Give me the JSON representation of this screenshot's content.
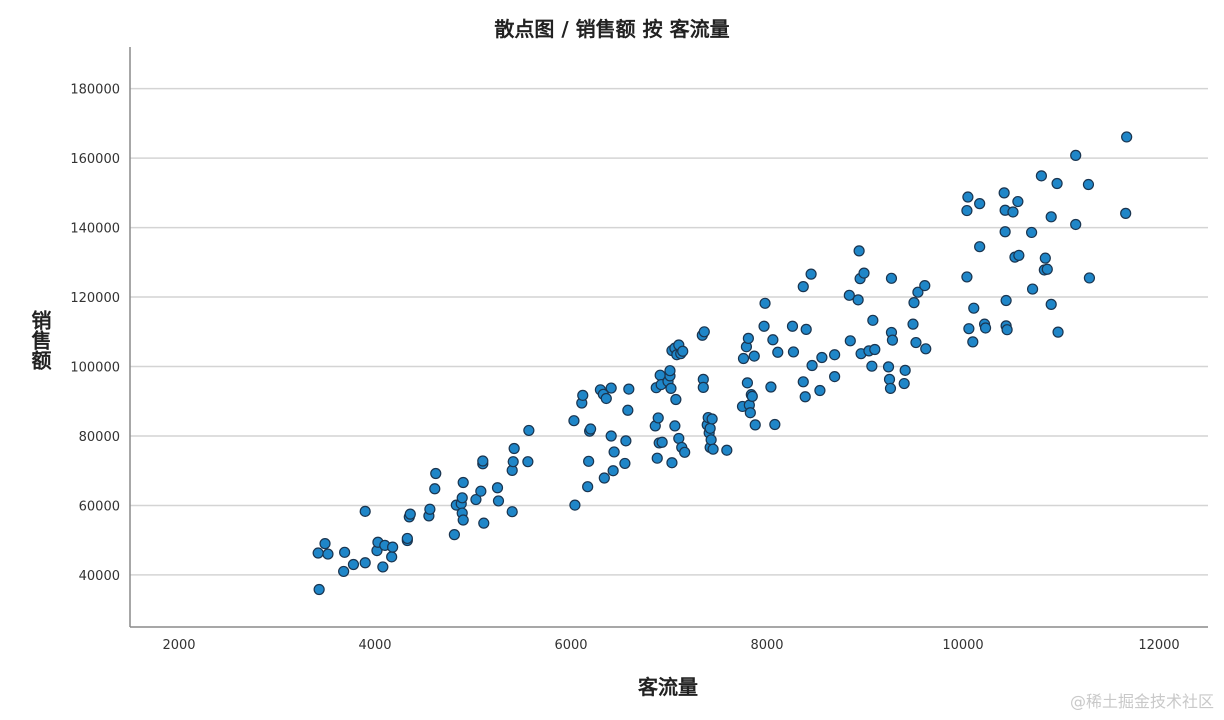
{
  "watermark": "@稀土掘金技术社区",
  "chart_data": {
    "type": "scatter",
    "title": "散点图 / 销售额 按 客流量",
    "xlabel": "客流量",
    "ylabel": "销售额",
    "xlim": [
      1500,
      12500
    ],
    "ylim": [
      25000,
      192000
    ],
    "xticks": [
      2000,
      4000,
      6000,
      8000,
      10000,
      12000
    ],
    "yticks": [
      40000,
      60000,
      80000,
      100000,
      120000,
      140000,
      160000,
      180000
    ],
    "grid": "horizontal",
    "marker_color": "#1f86c8",
    "marker_edge": "#1a3550",
    "points": [
      [
        3430,
        35800
      ],
      [
        3420,
        46300
      ],
      [
        3490,
        49000
      ],
      [
        3520,
        46000
      ],
      [
        3680,
        41000
      ],
      [
        3690,
        46500
      ],
      [
        3780,
        43000
      ],
      [
        3900,
        43500
      ],
      [
        3900,
        58300
      ],
      [
        4020,
        47000
      ],
      [
        4030,
        49400
      ],
      [
        4080,
        42300
      ],
      [
        4100,
        48500
      ],
      [
        4170,
        45200
      ],
      [
        4180,
        48000
      ],
      [
        4330,
        49900
      ],
      [
        4330,
        50500
      ],
      [
        4350,
        56700
      ],
      [
        4360,
        57500
      ],
      [
        4550,
        57000
      ],
      [
        4560,
        58900
      ],
      [
        4610,
        64800
      ],
      [
        4620,
        69200
      ],
      [
        4810,
        51600
      ],
      [
        4830,
        60100
      ],
      [
        4880,
        60500
      ],
      [
        4890,
        62200
      ],
      [
        4890,
        57800
      ],
      [
        4900,
        66600
      ],
      [
        4900,
        55800
      ],
      [
        5030,
        61700
      ],
      [
        5080,
        64100
      ],
      [
        5100,
        72000
      ],
      [
        5100,
        72800
      ],
      [
        5110,
        54900
      ],
      [
        5250,
        65100
      ],
      [
        5260,
        61300
      ],
      [
        5400,
        58200
      ],
      [
        5400,
        70100
      ],
      [
        5410,
        72600
      ],
      [
        5420,
        76400
      ],
      [
        5560,
        72600
      ],
      [
        5570,
        81600
      ],
      [
        6030,
        84400
      ],
      [
        6040,
        60100
      ],
      [
        6110,
        89500
      ],
      [
        6120,
        91700
      ],
      [
        6170,
        65400
      ],
      [
        6180,
        72700
      ],
      [
        6190,
        81400
      ],
      [
        6200,
        82000
      ],
      [
        6300,
        93300
      ],
      [
        6330,
        92000
      ],
      [
        6340,
        67900
      ],
      [
        6360,
        90800
      ],
      [
        6410,
        80000
      ],
      [
        6410,
        93800
      ],
      [
        6430,
        70000
      ],
      [
        6440,
        75400
      ],
      [
        6550,
        72100
      ],
      [
        6560,
        78600
      ],
      [
        6580,
        87400
      ],
      [
        6590,
        93500
      ],
      [
        6860,
        82900
      ],
      [
        6870,
        93900
      ],
      [
        6880,
        73600
      ],
      [
        6890,
        85200
      ],
      [
        6900,
        78000
      ],
      [
        6910,
        97500
      ],
      [
        6920,
        94800
      ],
      [
        6930,
        78200
      ],
      [
        6990,
        95700
      ],
      [
        7010,
        97300
      ],
      [
        7010,
        98800
      ],
      [
        7020,
        93700
      ],
      [
        7030,
        104600
      ],
      [
        7030,
        72300
      ],
      [
        7060,
        82900
      ],
      [
        7060,
        105300
      ],
      [
        7070,
        90500
      ],
      [
        7080,
        103400
      ],
      [
        7100,
        79300
      ],
      [
        7100,
        106200
      ],
      [
        7120,
        103700
      ],
      [
        7130,
        76700
      ],
      [
        7140,
        104400
      ],
      [
        7160,
        75300
      ],
      [
        7340,
        109000
      ],
      [
        7350,
        96300
      ],
      [
        7350,
        94000
      ],
      [
        7360,
        110000
      ],
      [
        7390,
        83200
      ],
      [
        7400,
        85300
      ],
      [
        7410,
        80900
      ],
      [
        7420,
        82200
      ],
      [
        7420,
        76700
      ],
      [
        7430,
        78900
      ],
      [
        7440,
        84900
      ],
      [
        7450,
        76200
      ],
      [
        7590,
        75900
      ],
      [
        7750,
        88500
      ],
      [
        7760,
        102300
      ],
      [
        7790,
        105700
      ],
      [
        7800,
        95300
      ],
      [
        7810,
        108100
      ],
      [
        7820,
        88900
      ],
      [
        7830,
        86700
      ],
      [
        7840,
        91900
      ],
      [
        7850,
        91400
      ],
      [
        7870,
        103000
      ],
      [
        7880,
        83200
      ],
      [
        7970,
        111600
      ],
      [
        7980,
        118200
      ],
      [
        8040,
        94100
      ],
      [
        8060,
        107700
      ],
      [
        8080,
        83300
      ],
      [
        8110,
        104100
      ],
      [
        8260,
        111600
      ],
      [
        8270,
        104200
      ],
      [
        8370,
        95600
      ],
      [
        8370,
        123000
      ],
      [
        8390,
        91300
      ],
      [
        8400,
        110700
      ],
      [
        8450,
        126600
      ],
      [
        8460,
        100300
      ],
      [
        8540,
        93100
      ],
      [
        8560,
        102600
      ],
      [
        8690,
        97100
      ],
      [
        8690,
        103400
      ],
      [
        8840,
        120500
      ],
      [
        8850,
        107400
      ],
      [
        8930,
        119200
      ],
      [
        8940,
        133300
      ],
      [
        8950,
        125300
      ],
      [
        8960,
        103700
      ],
      [
        8990,
        126900
      ],
      [
        9040,
        104500
      ],
      [
        9070,
        100100
      ],
      [
        9080,
        113300
      ],
      [
        9100,
        104900
      ],
      [
        9240,
        99900
      ],
      [
        9250,
        96300
      ],
      [
        9260,
        93700
      ],
      [
        9270,
        125400
      ],
      [
        9270,
        109800
      ],
      [
        9280,
        107600
      ],
      [
        9400,
        95100
      ],
      [
        9410,
        98900
      ],
      [
        9490,
        112200
      ],
      [
        9500,
        118400
      ],
      [
        9520,
        106900
      ],
      [
        9540,
        121400
      ],
      [
        9610,
        123300
      ],
      [
        9620,
        105100
      ],
      [
        10040,
        125800
      ],
      [
        10040,
        144900
      ],
      [
        10050,
        148800
      ],
      [
        10060,
        110900
      ],
      [
        10100,
        107100
      ],
      [
        10110,
        116800
      ],
      [
        10170,
        134500
      ],
      [
        10170,
        146900
      ],
      [
        10220,
        112200
      ],
      [
        10230,
        111100
      ],
      [
        10420,
        150000
      ],
      [
        10430,
        145000
      ],
      [
        10430,
        138800
      ],
      [
        10440,
        119000
      ],
      [
        10440,
        111700
      ],
      [
        10450,
        110600
      ],
      [
        10510,
        144500
      ],
      [
        10530,
        131500
      ],
      [
        10560,
        147500
      ],
      [
        10570,
        132000
      ],
      [
        10700,
        138600
      ],
      [
        10710,
        122300
      ],
      [
        10800,
        154900
      ],
      [
        10830,
        127800
      ],
      [
        10840,
        131200
      ],
      [
        10860,
        128000
      ],
      [
        10900,
        117900
      ],
      [
        10900,
        143100
      ],
      [
        10960,
        152700
      ],
      [
        10970,
        109900
      ],
      [
        11150,
        160800
      ],
      [
        11150,
        140900
      ],
      [
        11280,
        152400
      ],
      [
        11290,
        125500
      ],
      [
        11660,
        144100
      ],
      [
        11670,
        166100
      ]
    ]
  }
}
